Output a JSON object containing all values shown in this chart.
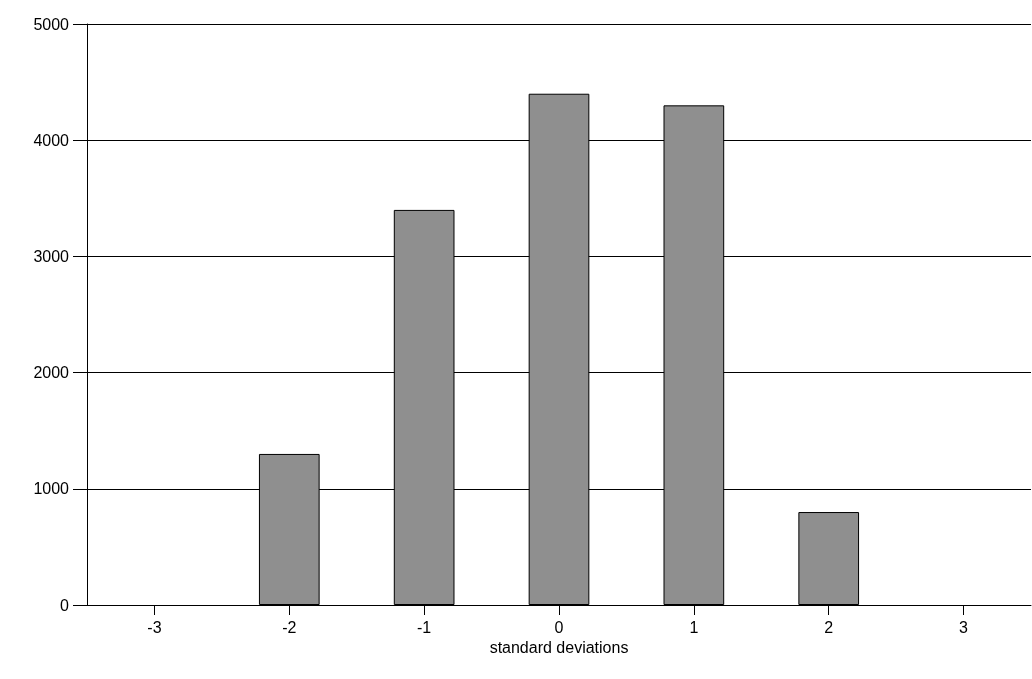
{
  "chart_data": {
    "type": "bar",
    "xlabel": "standard deviations",
    "categories": [
      "-3",
      "-2",
      "-1",
      "0",
      "1",
      "2",
      "3"
    ],
    "values": [
      null,
      1300,
      3400,
      4400,
      4300,
      800,
      null
    ],
    "color": "#8f8f8f",
    "ylim": [
      0,
      5000
    ],
    "yticks": [
      0,
      1000,
      2000,
      3000,
      4000,
      5000
    ],
    "grid": "y"
  }
}
